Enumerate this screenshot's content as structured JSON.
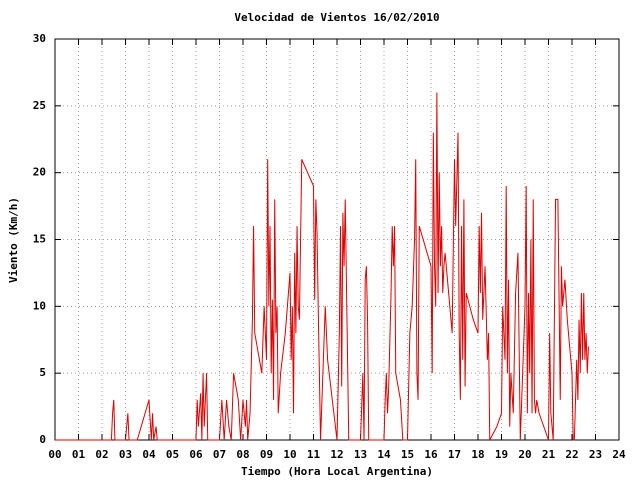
{
  "chart_data": {
    "type": "line",
    "title": "Velocidad de Vientos 16/02/2010",
    "x_label": "Tiempo (Hora Local Argentina)",
    "y_label": "Viento (Km/h)",
    "color": "#e00000",
    "grid": true,
    "xlim": [
      0,
      24
    ],
    "ylim": [
      0,
      30
    ],
    "xticks": [
      {
        "value": 0,
        "label": "00"
      },
      {
        "value": 1,
        "label": "01"
      },
      {
        "value": 2,
        "label": "02"
      },
      {
        "value": 3,
        "label": "03"
      },
      {
        "value": 4,
        "label": "04"
      },
      {
        "value": 5,
        "label": "05"
      },
      {
        "value": 6,
        "label": "06"
      },
      {
        "value": 7,
        "label": "07"
      },
      {
        "value": 8,
        "label": "08"
      },
      {
        "value": 9,
        "label": "09"
      },
      10,
      11,
      12,
      13,
      14,
      15,
      16,
      17,
      18,
      19,
      20,
      21,
      22,
      23,
      24
    ],
    "yticks": [
      0,
      5,
      10,
      15,
      20,
      25,
      30
    ],
    "x": [
      0,
      2.4,
      2.45,
      2.5,
      2.55,
      3,
      3.1,
      3.15,
      3.5,
      4,
      4.1,
      4.15,
      4.2,
      4.3,
      4.35,
      6,
      6.05,
      6.1,
      6.2,
      6.25,
      6.3,
      6.35,
      6.45,
      6.5,
      7,
      7.1,
      7.2,
      7.3,
      7.4,
      7.5,
      7.6,
      7.8,
      7.9,
      8,
      8.1,
      8.15,
      8.2,
      8.3,
      8.4,
      8.45,
      8.5,
      8.8,
      8.9,
      9,
      9.05,
      9.1,
      9.15,
      9.2,
      9.25,
      9.3,
      9.35,
      9.4,
      9.45,
      9.5,
      9.6,
      9.8,
      10,
      10.05,
      10.1,
      10.15,
      10.2,
      10.25,
      10.3,
      10.35,
      10.4,
      10.5,
      11,
      11.05,
      11.1,
      11.15,
      11.2,
      11.3,
      11.4,
      11.5,
      11.6,
      11.8,
      12,
      12.1,
      12.15,
      12.2,
      12.25,
      12.3,
      12.35,
      12.4,
      12.5,
      13,
      13.1,
      13.15,
      13.2,
      13.25,
      13.3,
      13.35,
      14,
      14.05,
      14.1,
      14.15,
      14.2,
      14.3,
      14.35,
      14.4,
      14.45,
      14.5,
      14.7,
      14.8,
      15,
      15.1,
      15.2,
      15.3,
      15.35,
      15.4,
      15.45,
      15.5,
      16,
      16.05,
      16.1,
      16.15,
      16.2,
      16.25,
      16.3,
      16.35,
      16.4,
      16.45,
      16.5,
      16.55,
      16.6,
      16.9,
      17,
      17.05,
      17.1,
      17.15,
      17.2,
      17.25,
      17.3,
      17.35,
      17.4,
      17.45,
      17.5,
      17.8,
      18,
      18.05,
      18.1,
      18.15,
      18.2,
      18.3,
      18.4,
      18.45,
      18.5,
      18.8,
      19,
      19.05,
      19.1,
      19.15,
      19.2,
      19.25,
      19.3,
      19.35,
      19.4,
      19.5,
      19.6,
      19.7,
      19.8,
      19.9,
      20,
      20.05,
      20.1,
      20.15,
      20.2,
      20.25,
      20.3,
      20.35,
      20.4,
      20.45,
      20.5,
      20.6,
      20.8,
      21,
      21.05,
      21.1,
      21.2,
      21.3,
      21.4,
      21.5,
      21.55,
      21.6,
      21.7,
      21.8,
      22,
      22.05,
      22.1,
      22.2,
      22.25,
      22.3,
      22.35,
      22.4,
      22.45,
      22.5,
      22.55,
      22.6,
      22.65,
      22.7
    ],
    "values": [
      0,
      0,
      2,
      3,
      0,
      0,
      2,
      0,
      0,
      3,
      0,
      2,
      0,
      1,
      0,
      0,
      3,
      1,
      3.5,
      0,
      5,
      1,
      5,
      0,
      0,
      3,
      0,
      3,
      1,
      0,
      5,
      3,
      0,
      3,
      1,
      3,
      0,
      2,
      9,
      16,
      8,
      5,
      10,
      6,
      21,
      10,
      16,
      5,
      10.5,
      3,
      18,
      8,
      10,
      2,
      5,
      8,
      12.5,
      6,
      10,
      2,
      14,
      8,
      16,
      10,
      9,
      21,
      19,
      10.5,
      18,
      15.5,
      10,
      0,
      5,
      10,
      6,
      3,
      0,
      8,
      16,
      4,
      17,
      13,
      18,
      12,
      0,
      0,
      5,
      0,
      12,
      13,
      9,
      0,
      0,
      3,
      5,
      2,
      4,
      11,
      16,
      13,
      16,
      5,
      3,
      0,
      0,
      8,
      10,
      15,
      21,
      5,
      3,
      16,
      13,
      5,
      23,
      13,
      10,
      26,
      11,
      20,
      13,
      16,
      11,
      13,
      14,
      8,
      21,
      16,
      19.5,
      23,
      8,
      3,
      16,
      6,
      18,
      4,
      11,
      9,
      8,
      16,
      11,
      17,
      9,
      13,
      6,
      8,
      0,
      1,
      2,
      10,
      8,
      6,
      19,
      5,
      12,
      1,
      5,
      2,
      11,
      14,
      0,
      5,
      10,
      19,
      2,
      11,
      5,
      15,
      2,
      18,
      3,
      2,
      3,
      2,
      1,
      0,
      8,
      2,
      0,
      18,
      18,
      3,
      13,
      10,
      12,
      9,
      5,
      0,
      0,
      6,
      3,
      9,
      5,
      11,
      6,
      11,
      6,
      8,
      5,
      7
    ]
  }
}
